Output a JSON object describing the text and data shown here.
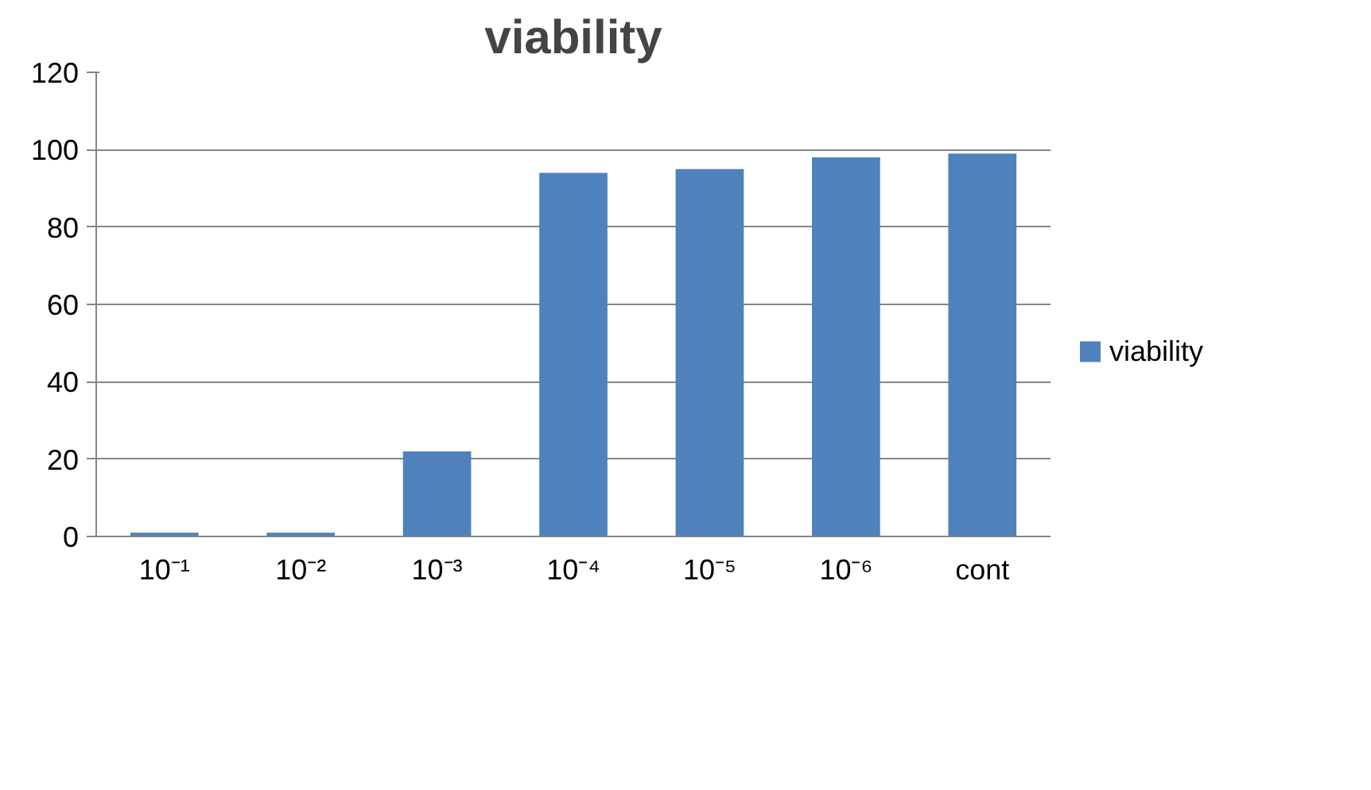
{
  "chart_data": {
    "type": "bar",
    "title": "viability",
    "categories": [
      "10⁻¹",
      "10⁻²",
      "10⁻³",
      "10⁻⁴",
      "10⁻⁵",
      "10⁻⁶",
      "cont"
    ],
    "series": [
      {
        "name": "viability",
        "color": "#4f81bd",
        "values": [
          1,
          1,
          22,
          94,
          95,
          98,
          99
        ]
      }
    ],
    "ylim": [
      0,
      120
    ],
    "yticks": [
      0,
      20,
      40,
      60,
      80,
      100,
      120
    ],
    "grid": "y",
    "legend": "right"
  }
}
